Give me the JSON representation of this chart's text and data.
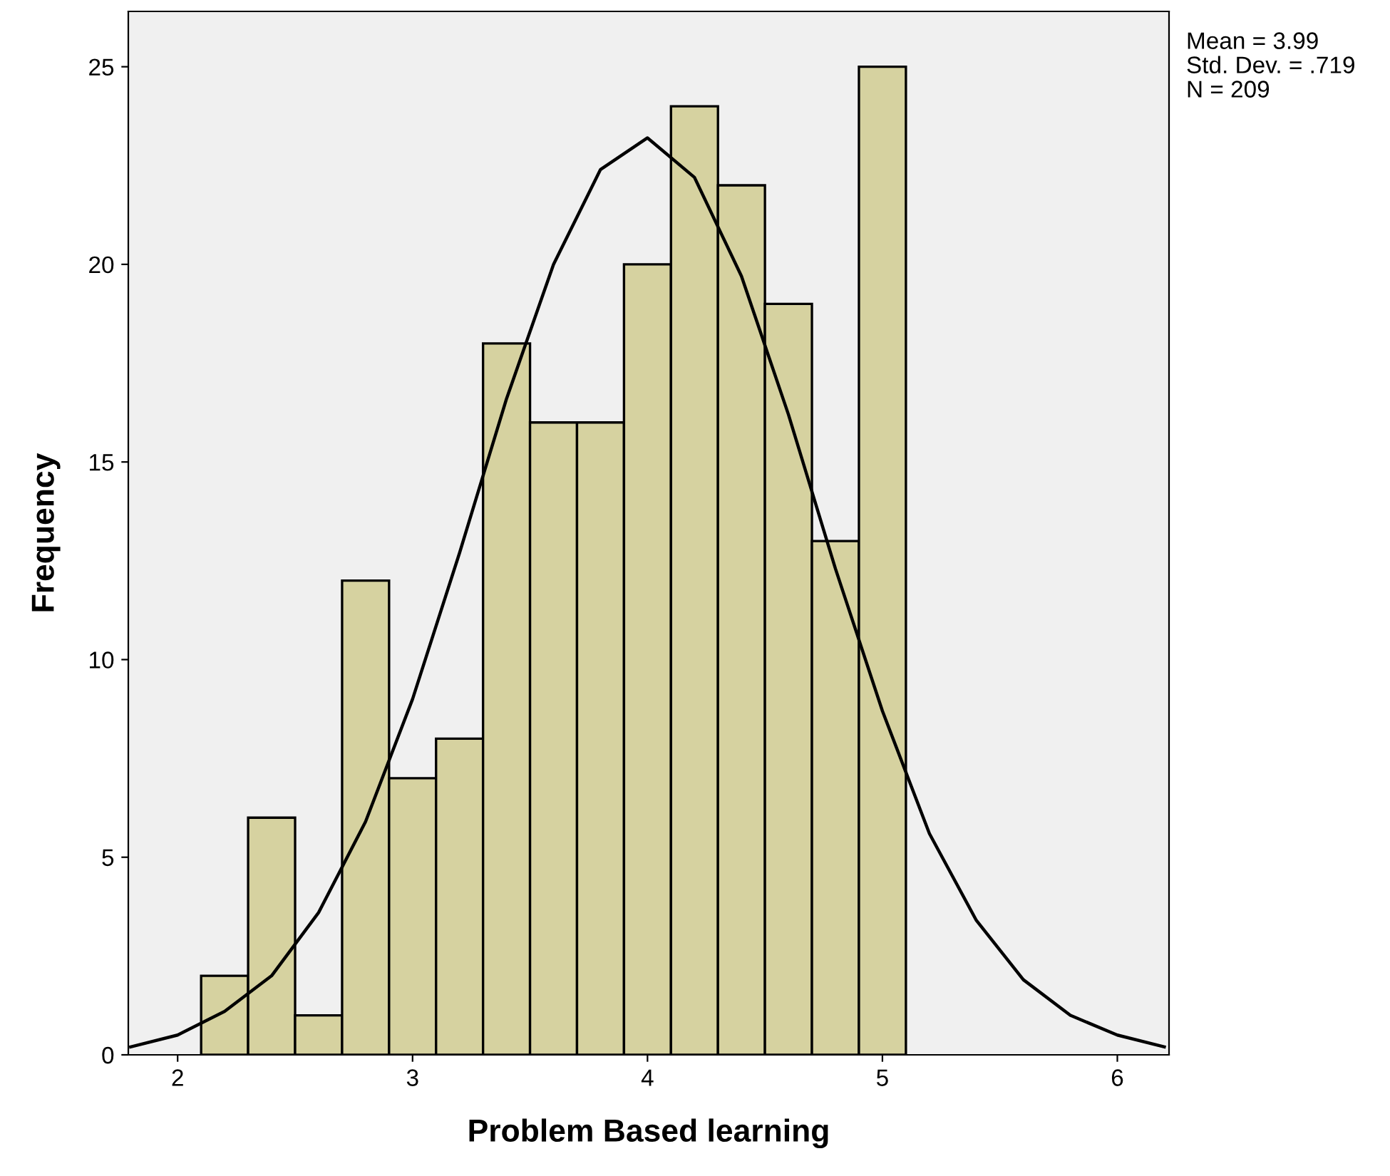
{
  "chart_data": {
    "type": "histogram",
    "xlabel": "Problem Based learning",
    "ylabel": "Frequency",
    "bins": [
      2.1,
      2.3,
      2.5,
      2.7,
      2.9,
      3.1,
      3.3,
      3.5,
      3.7,
      3.9,
      4.1,
      4.3,
      4.5,
      4.7,
      4.9,
      5.1
    ],
    "values": [
      2,
      6,
      1,
      12,
      7,
      8,
      18,
      16,
      16,
      20,
      24,
      22,
      19,
      13,
      25
    ],
    "color": "#d6d2a0",
    "series": [
      {
        "type": "line",
        "color": "#000000",
        "x": [
          1.8,
          2.0,
          2.2,
          2.4,
          2.6,
          2.8,
          3.0,
          3.2,
          3.4,
          3.6,
          3.8,
          4.0,
          4.2,
          4.4,
          4.6,
          4.8,
          5.0,
          5.2,
          5.4,
          5.6,
          5.8,
          6.0,
          6.2
        ],
        "values": [
          0.2,
          0.5,
          1.1,
          2.0,
          3.6,
          5.9,
          9.0,
          12.7,
          16.6,
          20.0,
          22.4,
          23.2,
          22.2,
          19.7,
          16.2,
          12.3,
          8.7,
          5.6,
          3.4,
          1.9,
          1.0,
          0.5,
          0.2
        ]
      }
    ],
    "xlim": [
      1.79,
      6.22
    ],
    "ylim": [
      0,
      26.4
    ],
    "xticks": [
      2,
      3,
      4,
      5,
      6
    ],
    "yticks": [
      0,
      5,
      10,
      15,
      20,
      25
    ],
    "grid": false,
    "legend": false,
    "annotations": [
      "Mean = 3.99",
      "Std. Dev. = .719",
      "N = 209"
    ]
  }
}
